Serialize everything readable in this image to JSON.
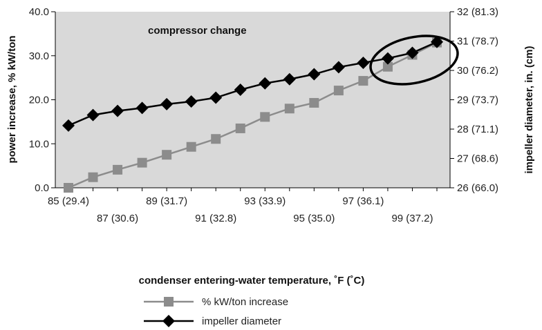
{
  "chart_data": {
    "type": "line",
    "annotation": "compressor change",
    "xlabel": "condenser entering-water temperature, ˚F (˚C)",
    "ylabel": "power increase, % kW/ton",
    "y2label": "impeller diameter, in. (cm)",
    "x": [
      85,
      86,
      87,
      88,
      89,
      90,
      91,
      92,
      93,
      94,
      95,
      96,
      97,
      98,
      99,
      100
    ],
    "x_tick_labels": [
      {
        "x": 85,
        "label": "85 (29.4)"
      },
      {
        "x": 87,
        "label": "87 (30.6)"
      },
      {
        "x": 89,
        "label": "89 (31.7)"
      },
      {
        "x": 91,
        "label": "91 (32.8)"
      },
      {
        "x": 93,
        "label": "93 (33.9)"
      },
      {
        "x": 95,
        "label": "95 (35.0)"
      },
      {
        "x": 97,
        "label": "97 (36.1)"
      },
      {
        "x": 99,
        "label": "99 (37.2)"
      }
    ],
    "ylim": [
      0,
      40
    ],
    "y_ticks": [
      {
        "value": 0,
        "label": "0.0"
      },
      {
        "value": 10,
        "label": "10.0"
      },
      {
        "value": 20,
        "label": "20.0"
      },
      {
        "value": 30,
        "label": "30.0"
      },
      {
        "value": 40,
        "label": "40.0"
      }
    ],
    "y2lim": [
      26,
      32
    ],
    "y2_ticks": [
      {
        "value": 26,
        "label": "26 (66.0)"
      },
      {
        "value": 27,
        "label": "27 (68.6)"
      },
      {
        "value": 28,
        "label": "28 (71.1)"
      },
      {
        "value": 29,
        "label": "29 (73.7)"
      },
      {
        "value": 30,
        "label": "30 (76.2)"
      },
      {
        "value": 31,
        "label": "31 (78.7)"
      },
      {
        "value": 32,
        "label": "32 (81.3)"
      }
    ],
    "series": [
      {
        "name": "% kW/ton increase",
        "axis": "left",
        "marker": "square",
        "color": "#8c8c8c",
        "values": [
          0.0,
          2.4,
          4.1,
          5.7,
          7.5,
          9.3,
          11.1,
          13.5,
          16.1,
          18.0,
          19.3,
          22.1,
          24.3,
          27.5,
          30.2,
          33.0
        ]
      },
      {
        "name": "impeller diameter",
        "axis": "right",
        "marker": "diamond",
        "color": "#000000",
        "values": [
          28.12,
          28.48,
          28.62,
          28.72,
          28.85,
          28.94,
          29.07,
          29.34,
          29.56,
          29.7,
          29.87,
          30.11,
          30.26,
          30.41,
          30.6,
          30.97
        ]
      }
    ],
    "grid": false,
    "legend_position": "bottom"
  }
}
